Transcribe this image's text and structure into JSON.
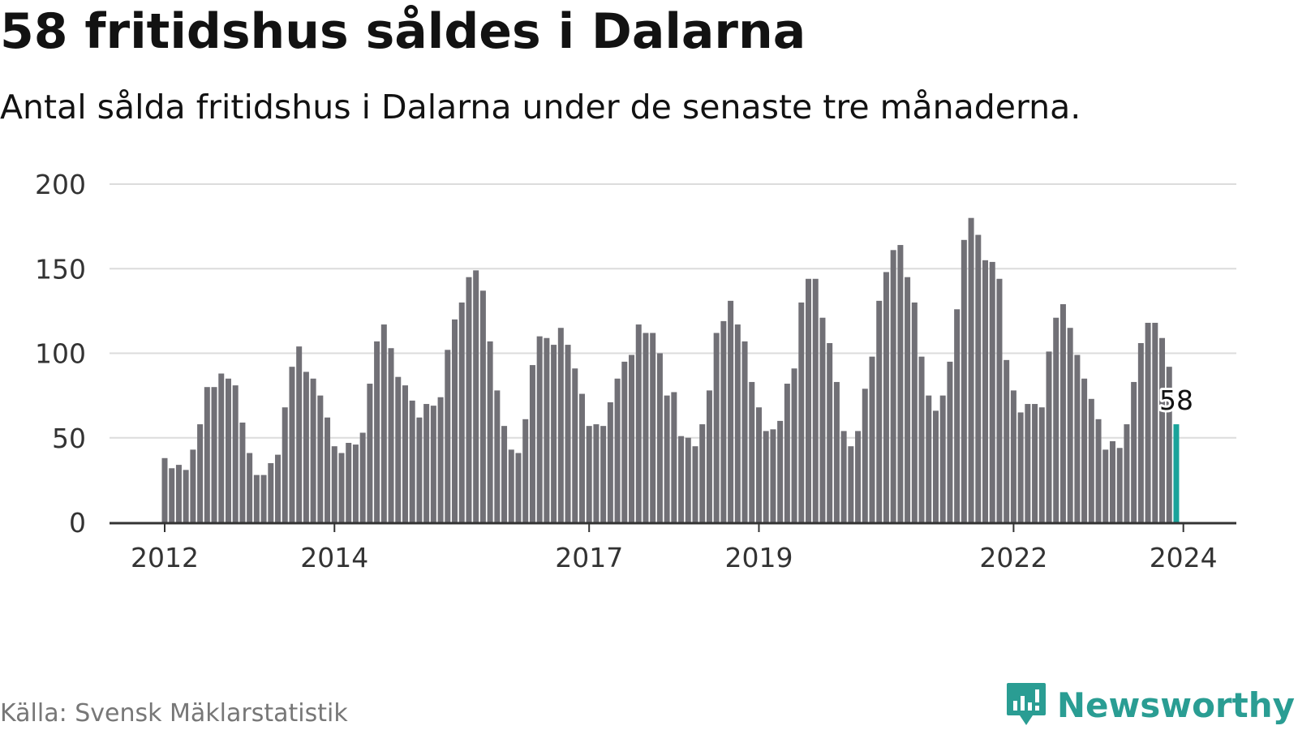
{
  "header": {
    "title": "58 fritidshus såldes i Dalarna",
    "subtitle": "Antal sålda fritidshus i Dalarna under de senaste tre månaderna."
  },
  "footer": {
    "source": "Källa: Svensk Mäklarstatistik",
    "brand": "Newsworthy",
    "brand_icon": "newsworthy-logo-icon"
  },
  "colors": {
    "bar": "#717076",
    "highlight": "#1aa39a",
    "grid": "#dcdcdc",
    "axis": "#333333",
    "brand": "#2a9d93"
  },
  "chart_data": {
    "type": "bar",
    "title": "58 fritidshus såldes i Dalarna",
    "subtitle": "Antal sålda fritidshus i Dalarna under de senaste tre månaderna.",
    "xlabel": "",
    "ylabel": "",
    "ylim": [
      0,
      200
    ],
    "yticks": [
      0,
      50,
      100,
      150,
      200
    ],
    "grid": true,
    "x_ticks": [
      {
        "label": "2012",
        "month": "2012-01"
      },
      {
        "label": "2014",
        "month": "2014-01"
      },
      {
        "label": "2017",
        "month": "2017-01"
      },
      {
        "label": "2019",
        "month": "2019-01"
      },
      {
        "label": "2022",
        "month": "2022-01"
      },
      {
        "label": "2024",
        "month": "2024-01"
      }
    ],
    "start_month": "2012-01",
    "values": [
      38,
      32,
      34,
      31,
      43,
      58,
      80,
      80,
      88,
      85,
      81,
      59,
      41,
      28,
      28,
      35,
      40,
      68,
      92,
      104,
      89,
      85,
      75,
      62,
      45,
      41,
      47,
      46,
      53,
      82,
      107,
      117,
      103,
      86,
      81,
      72,
      62,
      70,
      69,
      74,
      102,
      120,
      130,
      145,
      149,
      137,
      107,
      78,
      57,
      43,
      41,
      61,
      93,
      110,
      109,
      105,
      115,
      105,
      91,
      76,
      57,
      58,
      57,
      71,
      85,
      95,
      99,
      117,
      112,
      112,
      100,
      75,
      77,
      51,
      50,
      45,
      58,
      78,
      112,
      119,
      131,
      117,
      107,
      83,
      68,
      54,
      55,
      60,
      82,
      91,
      130,
      144,
      144,
      121,
      106,
      83,
      54,
      45,
      54,
      79,
      98,
      131,
      148,
      161,
      164,
      145,
      130,
      98,
      75,
      66,
      75,
      95,
      126,
      167,
      180,
      170,
      155,
      154,
      144,
      96,
      78,
      65,
      70,
      70,
      68,
      101,
      121,
      129,
      115,
      99,
      85,
      73,
      61,
      43,
      48,
      44,
      58,
      83,
      106,
      118,
      118,
      109,
      92,
      58
    ],
    "highlight_last": true,
    "last_label": "58"
  }
}
